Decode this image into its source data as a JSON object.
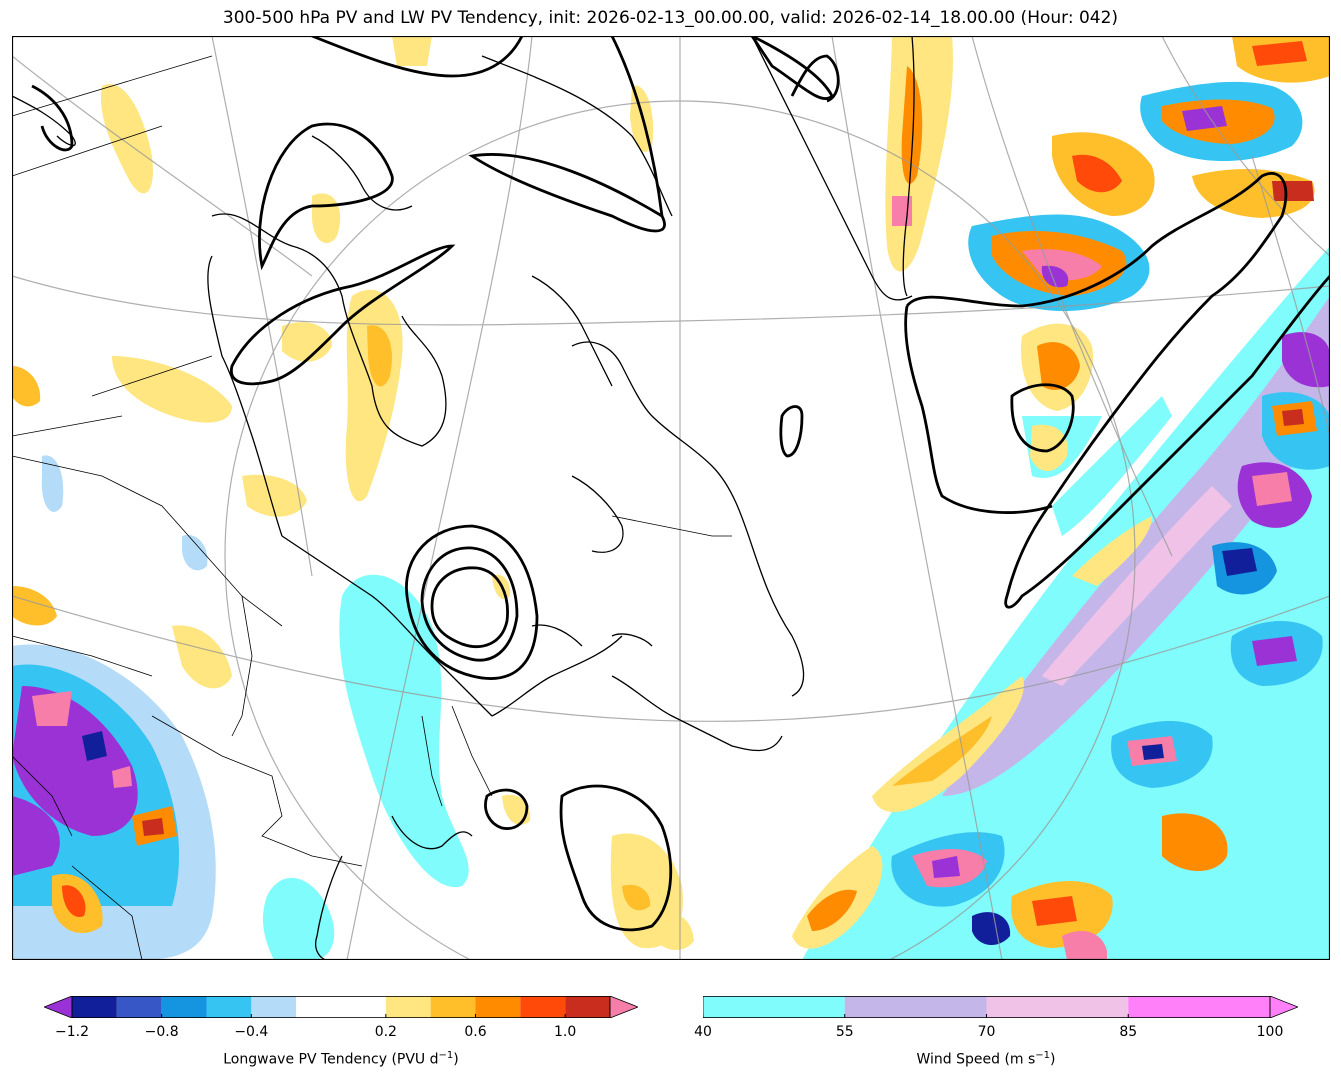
{
  "title": "300-500 hPa PV and LW PV Tendency, init: 2026-02-13_00.00.00, valid: 2026-02-14_18.00.00 (Hour: 042)",
  "colors": {
    "map_border": "#000000",
    "coast": "#000000",
    "graticule": "#9a9a9a",
    "pv_contour": "#000000"
  },
  "pv_colorbar": {
    "label": "Longwave PV Tendency (PVU d",
    "label_exp": "−1",
    "label_close": ")",
    "ticks": [
      "−1.2",
      "−0.8",
      "−0.4",
      "0.2",
      "0.6",
      "1.0"
    ],
    "tick_values": [
      -1.2,
      -0.8,
      -0.4,
      0.2,
      0.6,
      1.0
    ],
    "range": [
      -1.2,
      1.2
    ],
    "bins": [
      {
        "from": -1.2,
        "to": -1.0,
        "color": "#11209a"
      },
      {
        "from": -1.0,
        "to": -0.8,
        "color": "#3857c6"
      },
      {
        "from": -0.8,
        "to": -0.6,
        "color": "#1595e0"
      },
      {
        "from": -0.6,
        "to": -0.4,
        "color": "#36c4f2"
      },
      {
        "from": -0.4,
        "to": -0.2,
        "color": "#b4dbf8"
      },
      {
        "from": -0.2,
        "to": 0.2,
        "color": "#ffffff"
      },
      {
        "from": 0.2,
        "to": 0.4,
        "color": "#ffe680"
      },
      {
        "from": 0.4,
        "to": 0.6,
        "color": "#ffbf2a"
      },
      {
        "from": 0.6,
        "to": 0.8,
        "color": "#ff8c00"
      },
      {
        "from": 0.8,
        "to": 1.0,
        "color": "#ff4a0a"
      },
      {
        "from": 1.0,
        "to": 1.2,
        "color": "#c82d1e"
      }
    ],
    "under_color": "#9a32d6",
    "over_color": "#f67ea8"
  },
  "wind_colorbar": {
    "label": "Wind Speed (m s",
    "label_exp": "−1",
    "label_close": ")",
    "ticks": [
      "40",
      "55",
      "70",
      "85",
      "100"
    ],
    "tick_values": [
      40,
      55,
      70,
      85,
      100
    ],
    "range": [
      40,
      100
    ],
    "bins": [
      {
        "from": 40,
        "to": 55,
        "color": "#7ffcfb"
      },
      {
        "from": 55,
        "to": 70,
        "color": "#c5b6ea"
      },
      {
        "from": 70,
        "to": 85,
        "color": "#f0c2e8"
      },
      {
        "from": 85,
        "to": 100,
        "color": "#ff80f8"
      }
    ],
    "over_color": "#ff80f8"
  }
}
